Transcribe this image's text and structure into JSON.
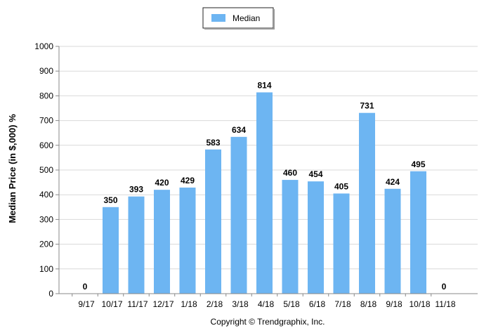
{
  "chart_data": {
    "type": "bar",
    "categories": [
      "9/17",
      "10/17",
      "11/17",
      "12/17",
      "1/18",
      "2/18",
      "3/18",
      "4/18",
      "5/18",
      "6/18",
      "7/18",
      "8/18",
      "9/18",
      "10/18",
      "11/18"
    ],
    "series": [
      {
        "name": "Median",
        "color": "#6db5f2",
        "values": [
          0,
          350,
          393,
          420,
          429,
          583,
          634,
          814,
          460,
          454,
          405,
          731,
          424,
          495,
          0
        ]
      }
    ],
    "data_labels": [
      "0",
      "350",
      "393",
      "420",
      "429",
      "583",
      "634",
      "814",
      "460",
      "454",
      "405",
      "731",
      "424",
      "495",
      "0"
    ],
    "title": "",
    "xlabel": "",
    "ylabel": "Median Price (in $,000) %",
    "ylim": [
      0,
      1000
    ],
    "yticks": [
      0,
      100,
      200,
      300,
      400,
      500,
      600,
      700,
      800,
      900,
      1000
    ],
    "ytick_labels": [
      "0",
      "100",
      "200",
      "300",
      "400",
      "500",
      "600",
      "700",
      "800",
      "900",
      "1000"
    ],
    "grid": true,
    "legend_position": "top-center"
  },
  "footer": {
    "copyright": "Copyright © Trendgraphix, Inc."
  },
  "colors": {
    "bar": "#6db5f2",
    "grid": "#d9d9d9",
    "axis": "#888888"
  }
}
